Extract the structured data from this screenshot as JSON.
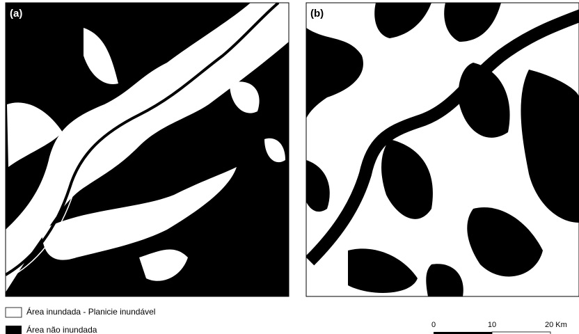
{
  "panels": [
    {
      "label": "(a)"
    },
    {
      "label": "(b)"
    }
  ],
  "legend": [
    {
      "label": "Área inundada - Planicie inundável"
    },
    {
      "label": "Área não inundada"
    }
  ],
  "scale_bar": {
    "labels": [
      "0",
      "10",
      "20 Km"
    ]
  }
}
